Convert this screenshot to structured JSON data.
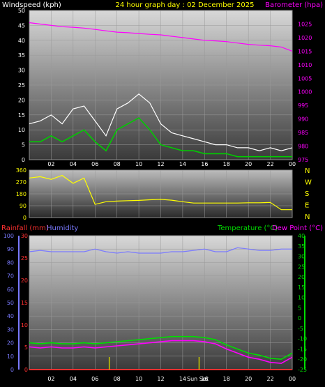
{
  "header": {
    "wind_label": "Windspeed (kph)",
    "title": "24 hour graph day : 02 December 2025",
    "baro_label": "Barometer (hpa)"
  },
  "direction_labels": [
    "N",
    "W",
    "S",
    "E",
    "N"
  ],
  "bottom_header": {
    "rain_label": "Rainfall (mm)",
    "humidity_label": "Humidity",
    "temp_label": "Temperature (°C)",
    "dew_label": "Dew Point (°C)"
  },
  "sun_labels": {
    "sunrise": "Sun Set",
    "sunset": "Sun Set"
  },
  "colors": {
    "wind": "#ffffff",
    "gust": "#00cc00",
    "avg_wind": "#009900",
    "barometer": "#ff00ff",
    "title": "#ffff00",
    "direction": "#ffff00",
    "rain": "#ff3030",
    "humidity": "#7a7aff",
    "temperature": "#00dd00",
    "dewpoint": "#ff00ff",
    "sun_marker": "#cccc00"
  },
  "chart_data": [
    {
      "type": "line",
      "title": "24 hour graph day : 02 December 2025",
      "x_ticks": [
        "02",
        "04",
        "06",
        "08",
        "10",
        "12",
        "14",
        "16",
        "18",
        "20",
        "22",
        "00"
      ],
      "left_axis": {
        "label": "Windspeed (kph)",
        "ylim": [
          0,
          50
        ],
        "ticks": [
          0,
          5,
          10,
          15,
          20,
          25,
          30,
          35,
          40,
          45,
          50
        ]
      },
      "right_axis": {
        "label": "Barometer (hpa)",
        "ylim": [
          975,
          1030
        ],
        "ticks": [
          975,
          980,
          985,
          990,
          995,
          1000,
          1005,
          1010,
          1015,
          1020,
          1025
        ]
      },
      "series": [
        {
          "name": "Windspeed (kph)",
          "x": [
            0,
            1,
            2,
            3,
            4,
            5,
            6,
            7,
            8,
            9,
            10,
            11,
            12,
            13,
            14,
            15,
            16,
            17,
            18,
            19,
            20,
            21,
            22,
            23,
            24
          ],
          "values": [
            6,
            6,
            8,
            6,
            8,
            10,
            6,
            3,
            10,
            12,
            14,
            10,
            5,
            4,
            3,
            3,
            2,
            2,
            2,
            1,
            1,
            1,
            1,
            1,
            1
          ]
        },
        {
          "name": "Gust (kph)",
          "x": [
            0,
            1,
            2,
            3,
            4,
            5,
            6,
            7,
            8,
            9,
            10,
            11,
            12,
            13,
            14,
            15,
            16,
            17,
            18,
            19,
            20,
            21,
            22,
            23,
            24
          ],
          "values": [
            12,
            13,
            15,
            12,
            17,
            18,
            13,
            8,
            17,
            19,
            22,
            19,
            12,
            9,
            8,
            7,
            6,
            5,
            5,
            4,
            4,
            3,
            4,
            3,
            4
          ]
        },
        {
          "name": "Barometer (hpa)",
          "x": [
            0,
            1,
            2,
            3,
            4,
            5,
            6,
            7,
            8,
            9,
            10,
            11,
            12,
            13,
            14,
            15,
            16,
            17,
            18,
            19,
            20,
            21,
            22,
            23,
            24
          ],
          "values": [
            1025.5,
            1025,
            1024.5,
            1024,
            1023.8,
            1023.5,
            1023,
            1022.5,
            1022,
            1021.8,
            1021.5,
            1021.2,
            1021,
            1020.5,
            1020,
            1019.5,
            1019,
            1018.8,
            1018.5,
            1018,
            1017.5,
            1017.2,
            1017,
            1016.5,
            1015
          ]
        }
      ]
    },
    {
      "type": "line",
      "title": "",
      "left_axis": {
        "label": "",
        "ylim": [
          0,
          360
        ],
        "ticks": [
          0,
          90,
          180,
          270,
          360
        ]
      },
      "right_labels": [
        "N",
        "W",
        "S",
        "E",
        "N"
      ],
      "series": [
        {
          "name": "Wind direction",
          "x": [
            0,
            1,
            2,
            3,
            4,
            5,
            6,
            7,
            8,
            9,
            10,
            11,
            12,
            13,
            14,
            15,
            16,
            17,
            18,
            19,
            20,
            21,
            22,
            23,
            24
          ],
          "values": [
            300,
            310,
            290,
            320,
            260,
            300,
            100,
            120,
            125,
            128,
            130,
            135,
            138,
            132,
            120,
            110,
            110,
            110,
            110,
            110,
            112,
            112,
            115,
            60,
            60
          ]
        }
      ]
    },
    {
      "type": "line",
      "title": "",
      "x_ticks": [
        "02",
        "04",
        "06",
        "08",
        "10",
        "12",
        "14",
        "16",
        "18",
        "20",
        "22",
        "00"
      ],
      "left_axis_humidity": {
        "label": "Humidity",
        "ylim": [
          0,
          100
        ],
        "ticks": [
          0,
          10,
          20,
          30,
          40,
          50,
          60,
          70,
          80,
          90,
          100
        ]
      },
      "left_axis_rain": {
        "label": "Rainfall (mm)",
        "ylim": [
          0,
          30
        ],
        "ticks": [
          0,
          5,
          10,
          15,
          20,
          25,
          30
        ]
      },
      "right_axis": {
        "label": "Temperature (°C)",
        "ylim": [
          -25,
          40
        ],
        "ticks": [
          -25,
          -20,
          -15,
          -10,
          -5,
          0,
          5,
          10,
          15,
          20,
          25,
          30,
          35,
          40
        ]
      },
      "annotations": [
        "Sun Set",
        "Sun Set"
      ],
      "series": [
        {
          "name": "Humidity",
          "x": [
            0,
            1,
            2,
            3,
            4,
            5,
            6,
            7,
            8,
            9,
            10,
            11,
            12,
            13,
            14,
            15,
            16,
            17,
            18,
            19,
            20,
            21,
            22,
            23,
            24
          ],
          "values": [
            88,
            89,
            88,
            88,
            88,
            88,
            90,
            88,
            87,
            88,
            87,
            87,
            87,
            88,
            88,
            89,
            90,
            88,
            88,
            91,
            90,
            89,
            89,
            90,
            90
          ]
        },
        {
          "name": "Temperature (°C)",
          "x": [
            0,
            1,
            2,
            3,
            4,
            5,
            6,
            7,
            8,
            9,
            10,
            11,
            12,
            13,
            14,
            15,
            16,
            17,
            18,
            19,
            20,
            21,
            22,
            23,
            24
          ],
          "values": [
            -12,
            -12.5,
            -12,
            -12.5,
            -12.5,
            -12,
            -12.5,
            -12,
            -11.5,
            -11,
            -10.5,
            -10,
            -9.5,
            -9,
            -9,
            -9,
            -9.5,
            -10.5,
            -13,
            -15,
            -17,
            -18,
            -19.5,
            -20,
            -17
          ]
        },
        {
          "name": "Dew Point (°C)",
          "x": [
            0,
            1,
            2,
            3,
            4,
            5,
            6,
            7,
            8,
            9,
            10,
            11,
            12,
            13,
            14,
            15,
            16,
            17,
            18,
            19,
            20,
            21,
            22,
            23,
            24
          ],
          "values": [
            -14,
            -14.5,
            -14,
            -14.5,
            -14.5,
            -14,
            -14.5,
            -14,
            -13.5,
            -13,
            -12.5,
            -12,
            -11.5,
            -11,
            -11,
            -11,
            -11.5,
            -12.5,
            -15,
            -17,
            -19,
            -20,
            -21.5,
            -22,
            -19
          ]
        },
        {
          "name": "Rainfall (mm)",
          "x": [
            0,
            24
          ],
          "values": [
            0,
            0
          ]
        }
      ]
    }
  ]
}
